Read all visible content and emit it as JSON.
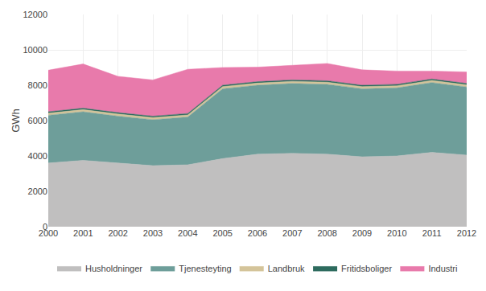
{
  "chart_data": {
    "type": "area",
    "stacked": true,
    "x": [
      2000,
      2001,
      2002,
      2003,
      2004,
      2005,
      2006,
      2007,
      2008,
      2009,
      2010,
      2011,
      2012
    ],
    "series": [
      {
        "name": "Husholdninger",
        "color": "#c0bfbf",
        "values": [
          3600,
          3750,
          3600,
          3450,
          3500,
          3850,
          4100,
          4150,
          4100,
          3950,
          4000,
          4200,
          4050
        ]
      },
      {
        "name": "Tjenesteyting",
        "color": "#6e9e9a",
        "values": [
          2700,
          2750,
          2650,
          2600,
          2700,
          3950,
          3900,
          3950,
          3950,
          3850,
          3850,
          3950,
          3850
        ]
      },
      {
        "name": "Landbruk",
        "color": "#d4c49a",
        "values": [
          120,
          120,
          120,
          120,
          120,
          120,
          120,
          120,
          120,
          120,
          120,
          120,
          120
        ]
      },
      {
        "name": "Fritidsboliger",
        "color": "#2d6b5e",
        "values": [
          80,
          80,
          80,
          80,
          80,
          80,
          80,
          80,
          80,
          80,
          80,
          80,
          80
        ]
      },
      {
        "name": "Industri",
        "color": "#e87aab",
        "values": [
          2350,
          2500,
          2050,
          2050,
          2500,
          1000,
          820,
          820,
          980,
          870,
          750,
          450,
          650
        ]
      }
    ],
    "xlim": [
      2000,
      2012
    ],
    "xticks": [
      2000,
      2001,
      2002,
      2003,
      2004,
      2005,
      2006,
      2007,
      2008,
      2009,
      2010,
      2011,
      2012
    ],
    "ylim": [
      0,
      12000
    ],
    "yticks": [
      0,
      2000,
      4000,
      6000,
      8000,
      10000,
      12000
    ],
    "ylabel": "GWh",
    "grid": true,
    "legend": "bottom"
  }
}
